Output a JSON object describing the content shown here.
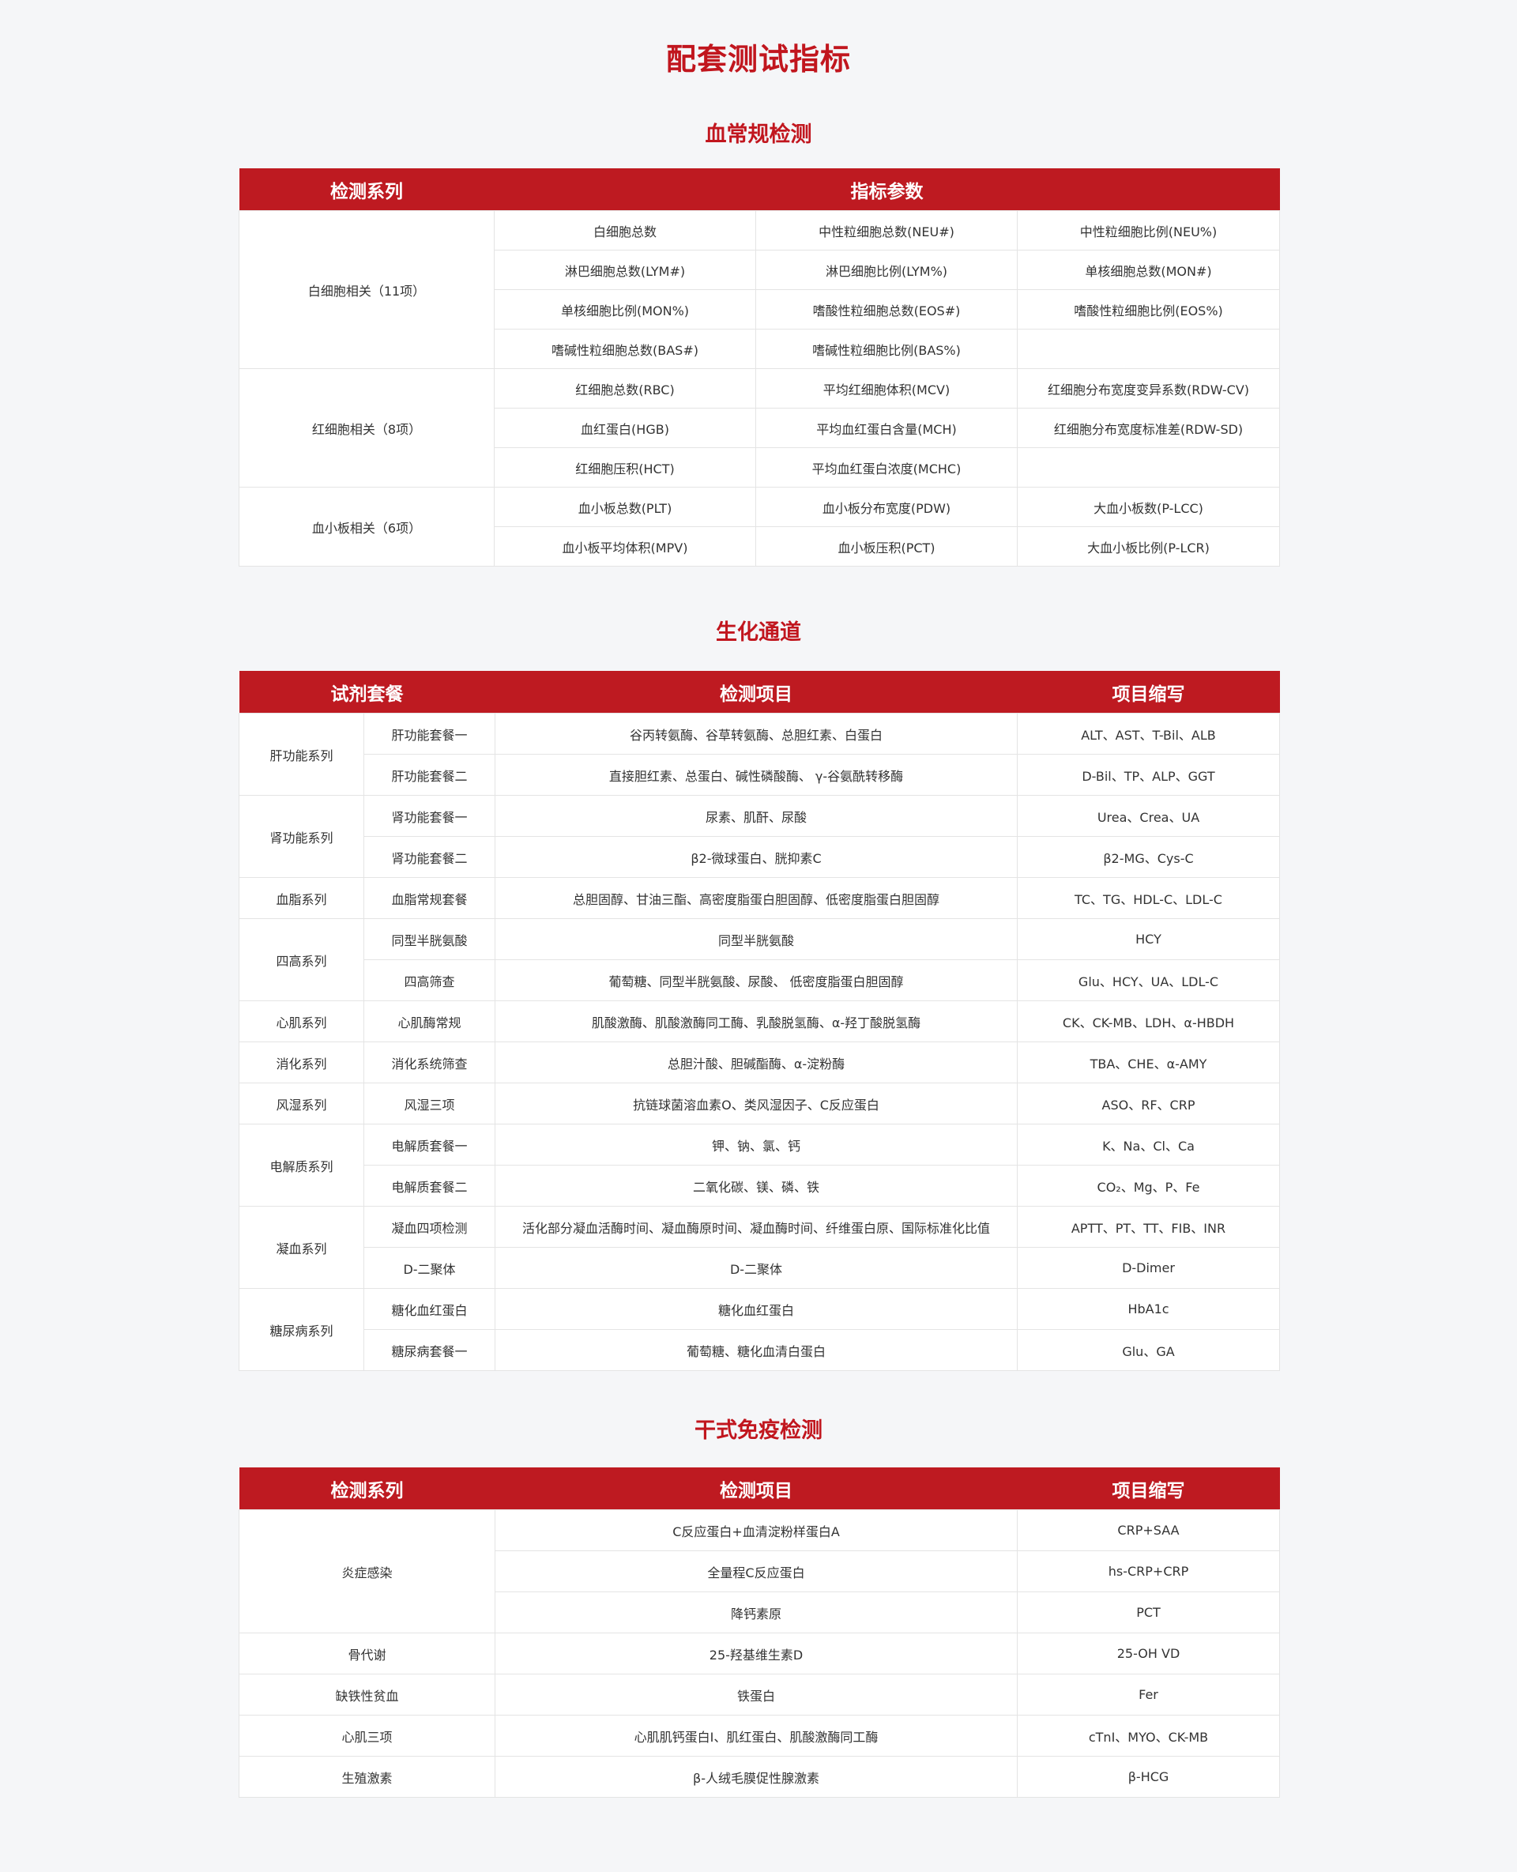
{
  "page_title": "配套测试指标",
  "blood": {
    "title": "血常规检测",
    "headers": [
      "检测系列",
      "指标参数"
    ],
    "groups": [
      {
        "name": "白细胞相关（11项）",
        "rows": [
          [
            "白细胞总数",
            "中性粒细胞总数(NEU#)",
            "中性粒细胞比例(NEU%)"
          ],
          [
            "淋巴细胞总数(LYM#)",
            "淋巴细胞比例(LYM%)",
            "单核细胞总数(MON#)"
          ],
          [
            "单核细胞比例(MON%)",
            "嗜酸性粒细胞总数(EOS#)",
            "嗜酸性粒细胞比例(EOS%)"
          ],
          [
            "嗜碱性粒细胞总数(BAS#)",
            "嗜碱性粒细胞比例(BAS%)",
            ""
          ]
        ]
      },
      {
        "name": "红细胞相关（8项）",
        "rows": [
          [
            "红细胞总数(RBC)",
            "平均红细胞体积(MCV)",
            "红细胞分布宽度变异系数(RDW-CV)"
          ],
          [
            "血红蛋白(HGB)",
            "平均血红蛋白含量(MCH)",
            "红细胞分布宽度标准差(RDW-SD)"
          ],
          [
            "红细胞压积(HCT)",
            "平均血红蛋白浓度(MCHC)",
            ""
          ]
        ]
      },
      {
        "name": "血小板相关（6项）",
        "rows": [
          [
            "血小板总数(PLT)",
            "血小板分布宽度(PDW)",
            "大血小板数(P-LCC)"
          ],
          [
            "血小板平均体积(MPV)",
            "血小板压积(PCT)",
            "大血小板比例(P-LCR)"
          ]
        ]
      }
    ]
  },
  "biochem": {
    "title": "生化通道",
    "headers": [
      "试剂套餐",
      "检测项目",
      "项目缩写"
    ],
    "groups": [
      {
        "name": "肝功能系列",
        "rows": [
          [
            "肝功能套餐一",
            "谷丙转氨酶、谷草转氨酶、总胆红素、白蛋白",
            "ALT、AST、T-Bil、ALB"
          ],
          [
            "肝功能套餐二",
            "直接胆红素、总蛋白、碱性磷酸酶、 γ-谷氨酰转移酶",
            "D-Bil、TP、ALP、GGT"
          ]
        ]
      },
      {
        "name": "肾功能系列",
        "rows": [
          [
            "肾功能套餐一",
            "尿素、肌酐、尿酸",
            "Urea、Crea、UA"
          ],
          [
            "肾功能套餐二",
            "β2-微球蛋白、胱抑素C",
            "β2-MG、Cys-C"
          ]
        ]
      },
      {
        "name": "血脂系列",
        "rows": [
          [
            "血脂常规套餐",
            "总胆固醇、甘油三酯、高密度脂蛋白胆固醇、低密度脂蛋白胆固醇",
            "TC、TG、HDL-C、LDL-C"
          ]
        ]
      },
      {
        "name": "四高系列",
        "rows": [
          [
            "同型半胱氨酸",
            "同型半胱氨酸",
            "HCY"
          ],
          [
            "四高筛查",
            "葡萄糖、同型半胱氨酸、尿酸、 低密度脂蛋白胆固醇",
            "Glu、HCY、UA、LDL-C"
          ]
        ]
      },
      {
        "name": "心肌系列",
        "rows": [
          [
            "心肌酶常规",
            "肌酸激酶、肌酸激酶同工酶、乳酸脱氢酶、α-羟丁酸脱氢酶",
            "CK、CK-MB、LDH、α-HBDH"
          ]
        ]
      },
      {
        "name": "消化系列",
        "rows": [
          [
            "消化系统筛查",
            "总胆汁酸、胆碱酯酶、α-淀粉酶",
            "TBA、CHE、α-AMY"
          ]
        ]
      },
      {
        "name": "风湿系列",
        "rows": [
          [
            "风湿三项",
            "抗链球菌溶血素O、类风湿因子、C反应蛋白",
            "ASO、RF、CRP"
          ]
        ]
      },
      {
        "name": "电解质系列",
        "rows": [
          [
            "电解质套餐一",
            "钾、钠、氯、钙",
            "K、Na、Cl、Ca"
          ],
          [
            "电解质套餐二",
            "二氧化碳、镁、磷、铁",
            "CO₂、Mg、P、Fe"
          ]
        ]
      },
      {
        "name": "凝血系列",
        "rows": [
          [
            "凝血四项检测",
            "活化部分凝血活酶时间、凝血酶原时间、凝血酶时间、纤维蛋白原、国际标准化比值",
            "APTT、PT、TT、FIB、INR"
          ],
          [
            "D-二聚体",
            "D-二聚体",
            "D-Dimer"
          ]
        ]
      },
      {
        "name": "糖尿病系列",
        "rows": [
          [
            "糖化血红蛋白",
            "糖化血红蛋白",
            "HbA1c"
          ],
          [
            "糖尿病套餐一",
            "葡萄糖、糖化血清白蛋白",
            "Glu、GA"
          ]
        ]
      }
    ]
  },
  "immuno": {
    "title": "干式免疫检测",
    "headers": [
      "检测系列",
      "检测项目",
      "项目缩写"
    ],
    "groups": [
      {
        "name": "炎症感染",
        "rows": [
          [
            "C反应蛋白+血清淀粉样蛋白A",
            "CRP+SAA"
          ],
          [
            "全量程C反应蛋白",
            "hs-CRP+CRP"
          ],
          [
            "降钙素原",
            "PCT"
          ]
        ]
      },
      {
        "name": "骨代谢",
        "rows": [
          [
            "25-羟基维生素D",
            "25-OH VD"
          ]
        ]
      },
      {
        "name": "缺铁性贫血",
        "rows": [
          [
            "铁蛋白",
            "Fer"
          ]
        ]
      },
      {
        "name": "心肌三项",
        "rows": [
          [
            "心肌肌钙蛋白I、肌红蛋白、肌酸激酶同工酶",
            "cTnI、MYO、CK-MB"
          ]
        ]
      },
      {
        "name": "生殖激素",
        "rows": [
          [
            "β-人绒毛膜促性腺激素",
            "β-HCG"
          ]
        ]
      }
    ]
  }
}
